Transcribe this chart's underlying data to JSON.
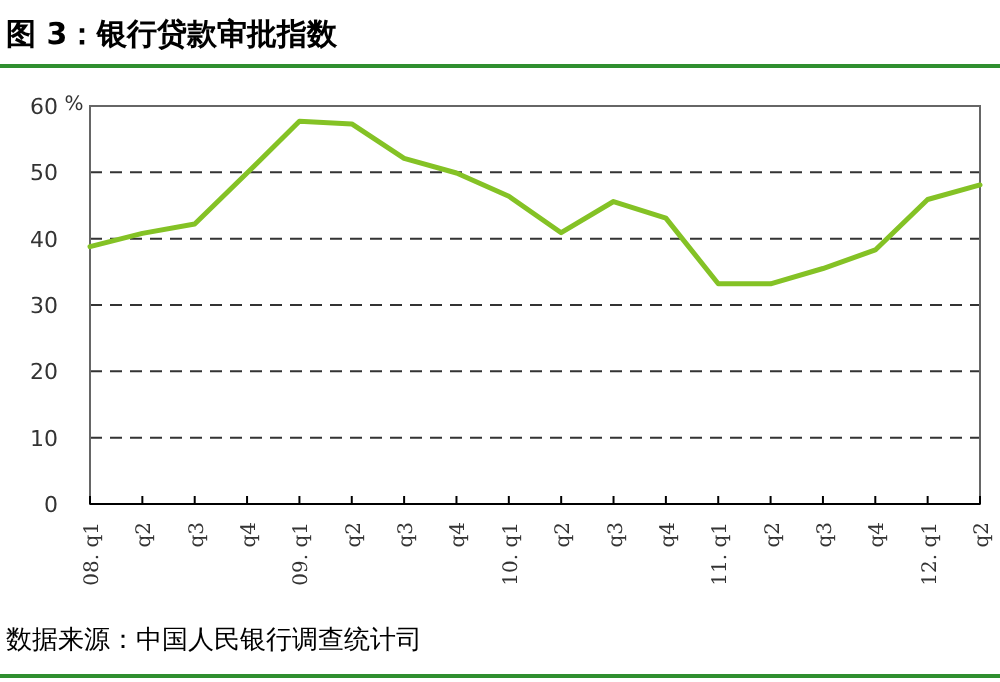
{
  "chart_data": {
    "type": "line",
    "title": "图 3：银行贷款审批指数",
    "ylabel": "%",
    "categories": [
      "08. q1",
      "q2",
      "q3",
      "q4",
      "09. q1",
      "q2",
      "q3",
      "q4",
      "10. q1",
      "q2",
      "q3",
      "q4",
      "11. q1",
      "q2",
      "q3",
      "q4",
      "12. q1",
      "q2"
    ],
    "series": [
      {
        "color": "#84c225",
        "values": [
          38.8,
          40.8,
          42.2,
          49.9,
          57.7,
          57.3,
          52.1,
          49.9,
          46.4,
          40.9,
          45.6,
          43.1,
          33.2,
          33.2,
          35.5,
          38.3,
          45.9,
          48.1
        ]
      }
    ],
    "ylim": [
      0,
      60
    ],
    "yticks": [
      0,
      10,
      20,
      30,
      40,
      50,
      60
    ],
    "grid": "y",
    "line_style": "solid",
    "marker": "none",
    "annotations": [
      "数据来源：中国人民银行调查统计司"
    ]
  }
}
